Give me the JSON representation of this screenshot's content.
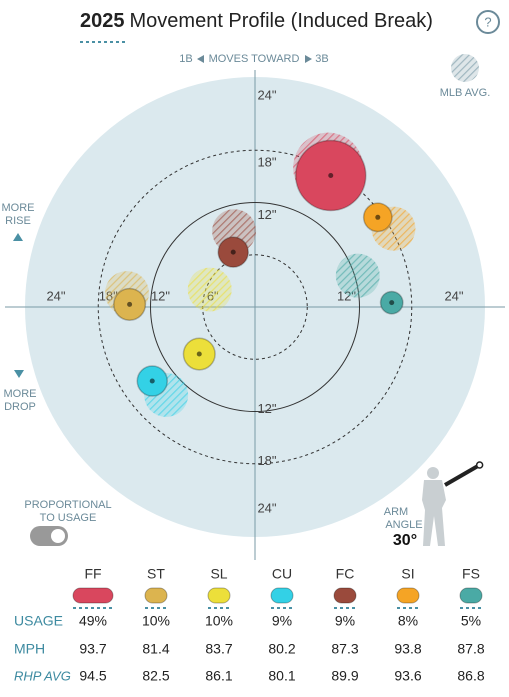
{
  "chart_data": {
    "type": "movement",
    "title_year": "2025",
    "title": "Movement Profile (Induced Break)",
    "help": "?",
    "direction": {
      "left": "1B",
      "middle": "MOVES TOWARD",
      "right": "3B"
    },
    "avg_legend": "MLB AVG.",
    "rise_label": [
      "MORE",
      "RISE"
    ],
    "drop_label": [
      "MORE",
      "DROP"
    ],
    "xlim": [
      -24,
      24
    ],
    "ylim": [
      -24,
      24
    ],
    "rings": [
      {
        "value": 6,
        "label": "6\""
      },
      {
        "value": 12,
        "label": "12\""
      },
      {
        "value": 18,
        "label": "18\""
      },
      {
        "value": 24,
        "label": "24\""
      }
    ],
    "toggle_label": [
      "PROPORTIONAL",
      "TO USAGE"
    ],
    "arm_angle_label": [
      "ARM",
      "ANGLE"
    ],
    "arm_angle": {
      "value": 30,
      "label": "30°"
    },
    "row_labels": [
      "USAGE",
      "MPH",
      "RHP AVG"
    ],
    "series": [
      {
        "name": "FF",
        "color": "#d9475e",
        "x": 8.7,
        "y": 15.1,
        "avg_x": 8.4,
        "avg_y": 16.0,
        "usage": 49,
        "usage_label": "49%",
        "mph": 93.7,
        "rhp_avg": 94.5
      },
      {
        "name": "ST",
        "color": "#dcb44f",
        "x": -14.4,
        "y": 0.3,
        "avg_x": -14.7,
        "avg_y": 1.6,
        "usage": 10,
        "usage_label": "10%",
        "mph": 81.4,
        "rhp_avg": 82.5
      },
      {
        "name": "SL",
        "color": "#ecdf3a",
        "x": -6.4,
        "y": -5.4,
        "avg_x": -5.2,
        "avg_y": 2.0,
        "usage": 10,
        "usage_label": "10%",
        "mph": 83.7,
        "rhp_avg": 86.1
      },
      {
        "name": "CU",
        "color": "#33d1e6",
        "x": -11.8,
        "y": -8.5,
        "avg_x": -10.2,
        "avg_y": -10.1,
        "usage": 9,
        "usage_label": "9%",
        "mph": 80.2,
        "rhp_avg": 80.1
      },
      {
        "name": "FC",
        "color": "#9a4a3c",
        "x": -2.5,
        "y": 6.3,
        "avg_x": -2.4,
        "avg_y": 8.7,
        "usage": 9,
        "usage_label": "9%",
        "mph": 87.3,
        "rhp_avg": 89.9
      },
      {
        "name": "SI",
        "color": "#f5a425",
        "x": 14.1,
        "y": 10.3,
        "avg_x": 15.9,
        "avg_y": 9.0,
        "usage": 8,
        "usage_label": "8%",
        "mph": 93.8,
        "rhp_avg": 93.6
      },
      {
        "name": "FS",
        "color": "#4aaaa5",
        "x": 15.7,
        "y": 0.5,
        "avg_x": 11.8,
        "avg_y": 3.6,
        "usage": 5,
        "usage_label": "5%",
        "mph": 87.8,
        "rhp_avg": 86.8
      }
    ]
  }
}
